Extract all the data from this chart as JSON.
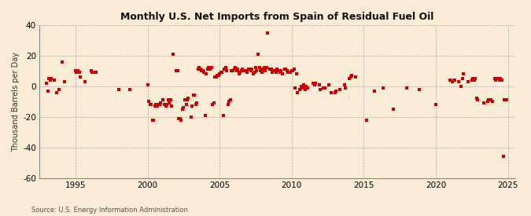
{
  "title": "Monthly U.S. Net Imports from Spain of Residual Fuel Oil",
  "ylabel": "Thousand Barrels per Day",
  "source": "Source: U.S. Energy Information Administration",
  "background_color": "#faebd7",
  "marker_color": "#cc0000",
  "xlim": [
    1992.5,
    2025.5
  ],
  "ylim": [
    -60,
    40
  ],
  "yticks": [
    -60,
    -40,
    -20,
    0,
    20,
    40
  ],
  "xticks": [
    1995,
    2000,
    2005,
    2010,
    2015,
    2020,
    2025
  ],
  "data": [
    [
      1993.0,
      2
    ],
    [
      1993.08,
      -3
    ],
    [
      1993.17,
      5
    ],
    [
      1993.25,
      4
    ],
    [
      1993.33,
      5
    ],
    [
      1993.5,
      4
    ],
    [
      1993.67,
      -4
    ],
    [
      1993.83,
      -2
    ],
    [
      1994.08,
      16
    ],
    [
      1994.25,
      3
    ],
    [
      1995.0,
      10
    ],
    [
      1995.08,
      9
    ],
    [
      1995.17,
      10
    ],
    [
      1995.25,
      9
    ],
    [
      1995.33,
      6
    ],
    [
      1995.67,
      3
    ],
    [
      1996.08,
      10
    ],
    [
      1996.17,
      9
    ],
    [
      1996.33,
      9
    ],
    [
      1996.42,
      9
    ],
    [
      1998.0,
      -2
    ],
    [
      1998.75,
      -2
    ],
    [
      2000.0,
      1
    ],
    [
      2000.08,
      -10
    ],
    [
      2000.17,
      -12
    ],
    [
      2000.25,
      -12
    ],
    [
      2000.33,
      -22
    ],
    [
      2000.42,
      -22
    ],
    [
      2000.5,
      -13
    ],
    [
      2000.58,
      -12
    ],
    [
      2000.67,
      -13
    ],
    [
      2000.75,
      -12
    ],
    [
      2000.83,
      -12
    ],
    [
      2000.92,
      -11
    ],
    [
      2001.08,
      -9
    ],
    [
      2001.17,
      -12
    ],
    [
      2001.25,
      -13
    ],
    [
      2001.33,
      -12
    ],
    [
      2001.42,
      -9
    ],
    [
      2001.5,
      -11
    ],
    [
      2001.58,
      -9
    ],
    [
      2001.67,
      -13
    ],
    [
      2001.75,
      21
    ],
    [
      2002.0,
      10
    ],
    [
      2002.08,
      10
    ],
    [
      2002.17,
      -21
    ],
    [
      2002.25,
      -21
    ],
    [
      2002.33,
      -22
    ],
    [
      2002.42,
      -15
    ],
    [
      2002.5,
      -14
    ],
    [
      2002.58,
      -9
    ],
    [
      2002.67,
      -12
    ],
    [
      2002.75,
      -9
    ],
    [
      2002.83,
      -8
    ],
    [
      2003.0,
      -20
    ],
    [
      2003.08,
      -13
    ],
    [
      2003.17,
      -6
    ],
    [
      2003.25,
      -6
    ],
    [
      2003.33,
      -12
    ],
    [
      2003.42,
      -11
    ],
    [
      2003.5,
      11
    ],
    [
      2003.58,
      12
    ],
    [
      2003.67,
      11
    ],
    [
      2003.75,
      10
    ],
    [
      2003.83,
      10
    ],
    [
      2003.92,
      9
    ],
    [
      2004.0,
      -19
    ],
    [
      2004.08,
      8
    ],
    [
      2004.17,
      11
    ],
    [
      2004.25,
      12
    ],
    [
      2004.33,
      11
    ],
    [
      2004.42,
      12
    ],
    [
      2004.5,
      -12
    ],
    [
      2004.58,
      -11
    ],
    [
      2004.67,
      6
    ],
    [
      2004.75,
      6
    ],
    [
      2004.83,
      7
    ],
    [
      2004.92,
      7
    ],
    [
      2005.0,
      8
    ],
    [
      2005.08,
      9
    ],
    [
      2005.17,
      9
    ],
    [
      2005.25,
      -19
    ],
    [
      2005.33,
      11
    ],
    [
      2005.42,
      12
    ],
    [
      2005.5,
      10
    ],
    [
      2005.58,
      -12
    ],
    [
      2005.67,
      -10
    ],
    [
      2005.75,
      -9
    ],
    [
      2005.83,
      10
    ],
    [
      2005.92,
      10
    ],
    [
      2006.0,
      11
    ],
    [
      2006.08,
      12
    ],
    [
      2006.17,
      10
    ],
    [
      2006.25,
      11
    ],
    [
      2006.33,
      8
    ],
    [
      2006.42,
      9
    ],
    [
      2006.5,
      10
    ],
    [
      2006.58,
      11
    ],
    [
      2006.67,
      10
    ],
    [
      2006.75,
      10
    ],
    [
      2006.83,
      10
    ],
    [
      2006.92,
      9
    ],
    [
      2007.0,
      11
    ],
    [
      2007.08,
      11
    ],
    [
      2007.17,
      10
    ],
    [
      2007.25,
      11
    ],
    [
      2007.33,
      8
    ],
    [
      2007.42,
      9
    ],
    [
      2007.5,
      12
    ],
    [
      2007.58,
      10
    ],
    [
      2007.67,
      21
    ],
    [
      2007.75,
      12
    ],
    [
      2007.83,
      10
    ],
    [
      2007.92,
      9
    ],
    [
      2008.0,
      11
    ],
    [
      2008.08,
      12
    ],
    [
      2008.17,
      10
    ],
    [
      2008.25,
      12
    ],
    [
      2008.33,
      35
    ],
    [
      2008.5,
      11
    ],
    [
      2008.58,
      11
    ],
    [
      2008.67,
      9
    ],
    [
      2008.75,
      10
    ],
    [
      2008.83,
      10
    ],
    [
      2008.92,
      9
    ],
    [
      2009.0,
      11
    ],
    [
      2009.08,
      10
    ],
    [
      2009.17,
      9
    ],
    [
      2009.25,
      10
    ],
    [
      2009.33,
      8
    ],
    [
      2009.5,
      11
    ],
    [
      2009.58,
      11
    ],
    [
      2009.67,
      10
    ],
    [
      2009.75,
      9
    ],
    [
      2009.83,
      9
    ],
    [
      2009.92,
      9
    ],
    [
      2010.0,
      10
    ],
    [
      2010.08,
      10
    ],
    [
      2010.17,
      11
    ],
    [
      2010.25,
      -1
    ],
    [
      2010.33,
      8
    ],
    [
      2010.42,
      -4
    ],
    [
      2010.58,
      -2
    ],
    [
      2010.67,
      0
    ],
    [
      2010.75,
      -1
    ],
    [
      2010.83,
      1
    ],
    [
      2010.92,
      -2
    ],
    [
      2011.0,
      0
    ],
    [
      2011.08,
      -1
    ],
    [
      2011.5,
      2
    ],
    [
      2011.58,
      1
    ],
    [
      2011.67,
      2
    ],
    [
      2011.92,
      1
    ],
    [
      2012.0,
      -2
    ],
    [
      2012.17,
      -1
    ],
    [
      2012.33,
      -1
    ],
    [
      2012.58,
      1
    ],
    [
      2012.75,
      -4
    ],
    [
      2013.0,
      -4
    ],
    [
      2013.08,
      -3
    ],
    [
      2013.33,
      -2
    ],
    [
      2013.67,
      1
    ],
    [
      2013.75,
      -1
    ],
    [
      2014.0,
      5
    ],
    [
      2014.08,
      6
    ],
    [
      2014.17,
      7
    ],
    [
      2014.42,
      6
    ],
    [
      2015.17,
      -22
    ],
    [
      2015.75,
      -3
    ],
    [
      2016.33,
      -1
    ],
    [
      2017.08,
      -15
    ],
    [
      2018.0,
      -1
    ],
    [
      2018.83,
      -2
    ],
    [
      2020.0,
      -12
    ],
    [
      2021.0,
      4
    ],
    [
      2021.17,
      3
    ],
    [
      2021.25,
      4
    ],
    [
      2021.33,
      4
    ],
    [
      2021.58,
      3
    ],
    [
      2021.75,
      0
    ],
    [
      2021.83,
      5
    ],
    [
      2021.92,
      8
    ],
    [
      2022.25,
      3
    ],
    [
      2022.5,
      4
    ],
    [
      2022.58,
      5
    ],
    [
      2022.67,
      4
    ],
    [
      2022.75,
      5
    ],
    [
      2022.83,
      -8
    ],
    [
      2022.92,
      -9
    ],
    [
      2023.33,
      -11
    ],
    [
      2023.58,
      -10
    ],
    [
      2023.67,
      -9
    ],
    [
      2023.83,
      -9
    ],
    [
      2023.92,
      -10
    ],
    [
      2024.08,
      5
    ],
    [
      2024.17,
      4
    ],
    [
      2024.25,
      5
    ],
    [
      2024.33,
      5
    ],
    [
      2024.42,
      4
    ],
    [
      2024.5,
      5
    ],
    [
      2024.58,
      4
    ],
    [
      2024.67,
      -46
    ],
    [
      2024.75,
      -9
    ],
    [
      2024.83,
      -9
    ],
    [
      2024.92,
      -9
    ]
  ]
}
